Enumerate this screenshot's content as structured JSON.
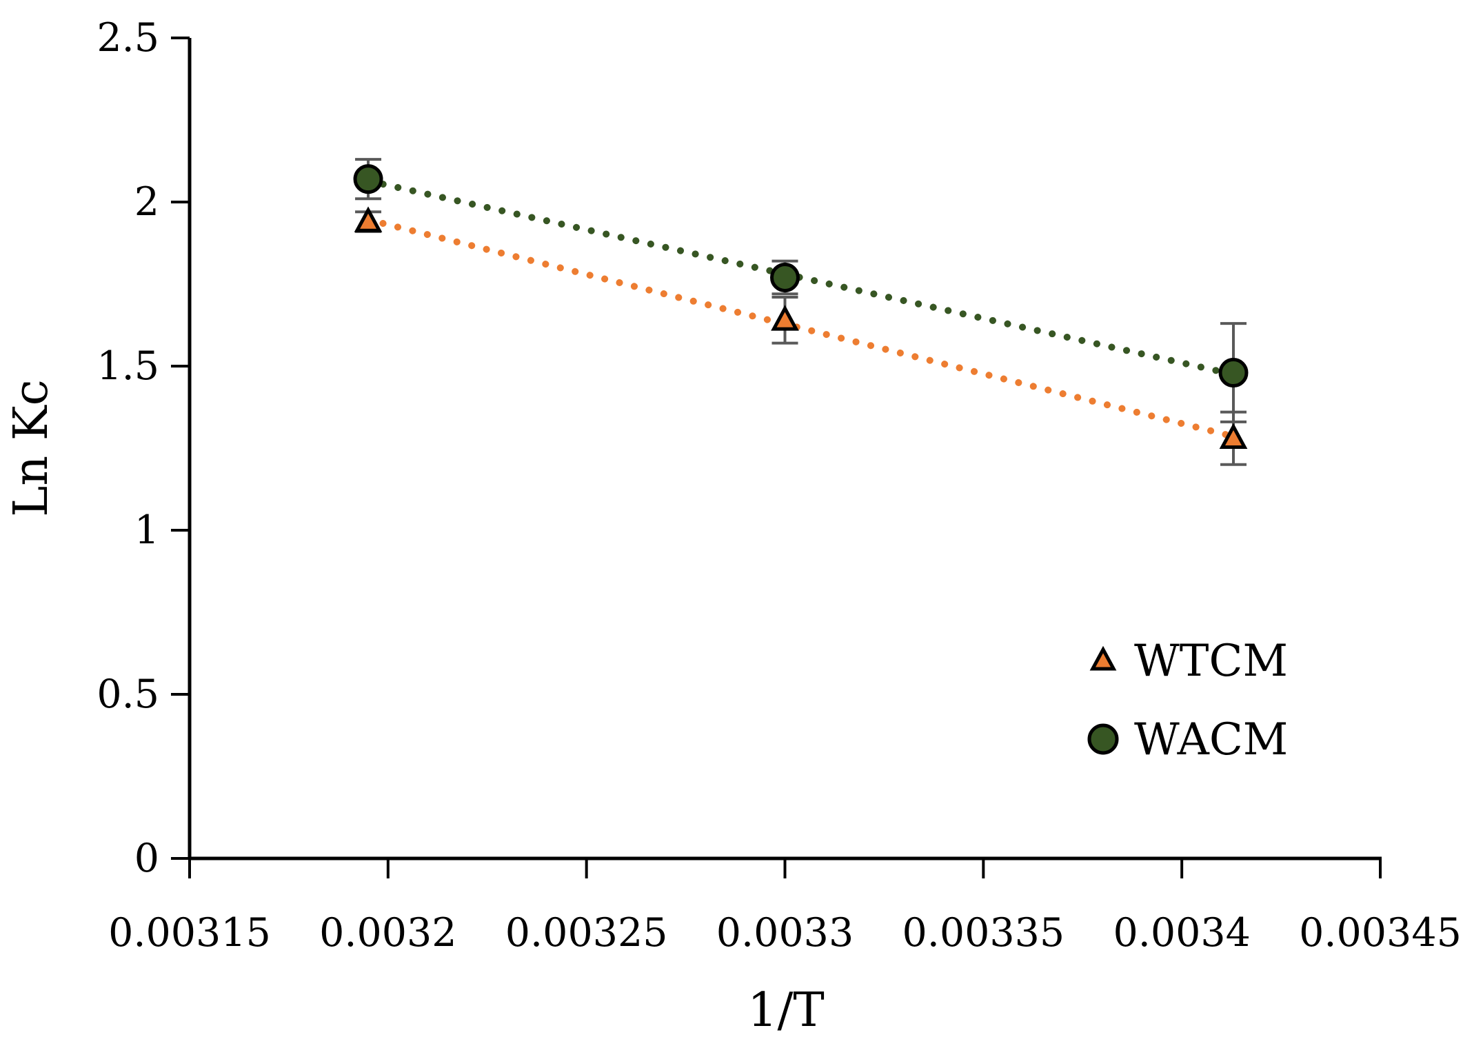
{
  "chart_data": {
    "type": "scatter",
    "title": "",
    "xlabel": "1/T",
    "ylabel": "Ln Kc",
    "xlim": [
      0.00315,
      0.00345
    ],
    "ylim": [
      0,
      2.5
    ],
    "xticks": [
      0.00315,
      0.0032,
      0.00325,
      0.0033,
      0.00335,
      0.0034,
      0.00345
    ],
    "xtick_labels": [
      "0.00315",
      "0.0032",
      "0.00325",
      "0.0033",
      "0.00335",
      "0.0034",
      "0.00345"
    ],
    "yticks": [
      0,
      0.5,
      1,
      1.5,
      2,
      2.5
    ],
    "ytick_labels": [
      "0",
      "0.5",
      "1",
      "1.5",
      "2",
      "2.5"
    ],
    "grid": false,
    "legend_position": "right",
    "series": [
      {
        "name": "WTCM",
        "marker": "triangle",
        "color": "#ED7D31",
        "trendline": "linear-dotted",
        "x": [
          0.003195,
          0.0033,
          0.003413
        ],
        "y": [
          1.94,
          1.64,
          1.28
        ],
        "error": [
          0.03,
          0.07,
          0.08
        ]
      },
      {
        "name": "WACM",
        "marker": "circle",
        "color": "#375623",
        "trendline": "linear-dotted",
        "x": [
          0.003195,
          0.0033,
          0.003413
        ],
        "y": [
          2.07,
          1.77,
          1.48
        ],
        "error": [
          0.06,
          0.05,
          0.15
        ]
      }
    ]
  }
}
